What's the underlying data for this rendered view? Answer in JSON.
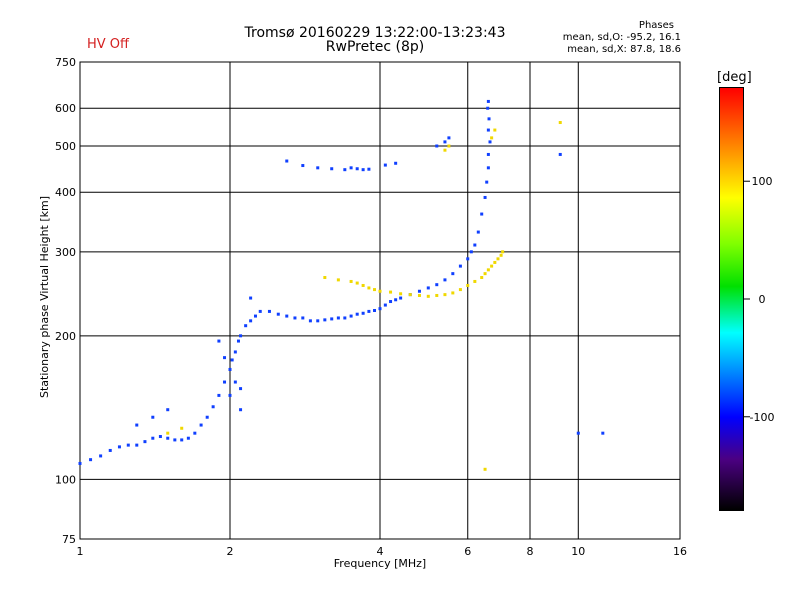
{
  "header": {
    "title": "Tromsø 20160229 13:22:00-13:23:43",
    "subtitle": "RwPretec (8p)",
    "status": "HV Off",
    "phases_title": "Phases",
    "phases_o": "mean, sd,O: -95.2, 16.1",
    "phases_x": "mean, sd,X:  87.8, 18.6"
  },
  "colorbar": {
    "unit": "[deg]",
    "ticks": [
      "100",
      "0",
      "-100"
    ],
    "tick_values": [
      100,
      0,
      -100
    ],
    "range": [
      -180,
      180
    ]
  },
  "colors": {
    "o_mode": "#1040ff",
    "x_mode": "#f0d800",
    "hv_status": "#d42020"
  },
  "chart_data": {
    "type": "scatter",
    "title": "Tromsø 20160229 13:22:00-13:23:43",
    "subtitle": "RwPretec (8p)",
    "xlabel": "Frequency [MHz]",
    "ylabel": "Stationary phase Virtual Height [km]",
    "x_scale": "log",
    "y_scale": "log",
    "xlim": [
      1,
      16
    ],
    "ylim": [
      75,
      750
    ],
    "x_ticks": [
      1,
      2,
      4,
      6,
      8,
      10,
      16
    ],
    "x_tick_labels": [
      "1",
      "2",
      "4",
      "6",
      "8",
      "10",
      "16"
    ],
    "y_ticks": [
      75,
      100,
      200,
      300,
      400,
      500,
      600,
      750
    ],
    "y_tick_labels": [
      "75",
      "100",
      "200",
      "300",
      "400",
      "500",
      "600",
      "750"
    ],
    "grid": true,
    "series": [
      {
        "x": [
          1.0,
          1.05,
          1.1,
          1.15,
          1.2,
          1.25,
          1.3,
          1.35,
          1.4,
          1.45,
          1.5,
          1.55,
          1.6,
          1.65,
          1.7,
          1.75,
          1.8,
          1.85,
          1.9,
          1.95,
          2.0,
          2.02,
          2.05,
          2.08,
          2.1,
          2.15,
          2.2,
          2.25,
          2.3,
          2.4,
          2.5,
          2.6,
          2.7,
          2.8,
          2.9,
          3.0,
          3.1,
          3.2,
          3.3,
          3.4,
          3.5,
          3.6,
          3.7,
          3.8,
          3.9,
          4.0,
          4.1,
          4.2,
          4.3,
          4.4,
          4.6,
          4.8,
          5.0,
          5.2,
          5.4,
          5.6,
          5.8,
          6.0,
          6.1,
          6.2,
          6.3,
          6.4,
          6.5,
          6.55,
          6.6,
          6.6,
          6.65,
          6.6,
          6.62,
          6.58,
          6.6,
          2.6,
          2.8,
          3.0,
          3.2,
          3.4,
          3.5,
          3.6,
          3.7,
          3.8,
          4.1,
          4.3,
          5.2,
          5.4,
          5.5,
          2.0,
          2.05,
          2.1,
          1.9,
          2.2,
          1.95,
          2.0,
          2.1,
          1.3,
          1.4,
          1.5,
          9.2,
          10.0,
          11.2
        ],
        "y": [
          108,
          110,
          112,
          115,
          117,
          118,
          118,
          120,
          122,
          123,
          122,
          121,
          121,
          122,
          125,
          130,
          135,
          142,
          150,
          160,
          170,
          178,
          185,
          195,
          200,
          210,
          215,
          220,
          225,
          225,
          222,
          220,
          218,
          218,
          215,
          215,
          216,
          217,
          218,
          218,
          220,
          222,
          223,
          225,
          226,
          228,
          232,
          236,
          238,
          240,
          244,
          248,
          252,
          256,
          262,
          270,
          280,
          290,
          300,
          310,
          330,
          360,
          390,
          420,
          450,
          480,
          510,
          540,
          570,
          600,
          620,
          465,
          455,
          450,
          448,
          446,
          450,
          448,
          446,
          447,
          456,
          460,
          500,
          510,
          520,
          150,
          160,
          140,
          195,
          240,
          180,
          170,
          155,
          130,
          135,
          140,
          480,
          125,
          125
        ],
        "phase_deg": -100
      },
      {
        "x": [
          3.1,
          3.3,
          3.5,
          3.6,
          3.7,
          3.8,
          3.9,
          4.0,
          4.2,
          4.4,
          4.6,
          4.8,
          5.0,
          5.2,
          5.4,
          5.6,
          5.8,
          6.0,
          6.2,
          6.4,
          6.5,
          6.6,
          6.7,
          6.8,
          6.9,
          7.0,
          7.05,
          6.8,
          6.7,
          5.4,
          5.5,
          9.2,
          1.5,
          1.6,
          6.5
        ],
        "y": [
          265,
          262,
          260,
          258,
          255,
          252,
          250,
          248,
          247,
          245,
          244,
          243,
          242,
          243,
          244,
          246,
          250,
          255,
          260,
          265,
          270,
          275,
          280,
          285,
          290,
          295,
          300,
          540,
          520,
          490,
          500,
          560,
          125,
          128,
          105
        ],
        "phase_deg": 100
      }
    ]
  }
}
